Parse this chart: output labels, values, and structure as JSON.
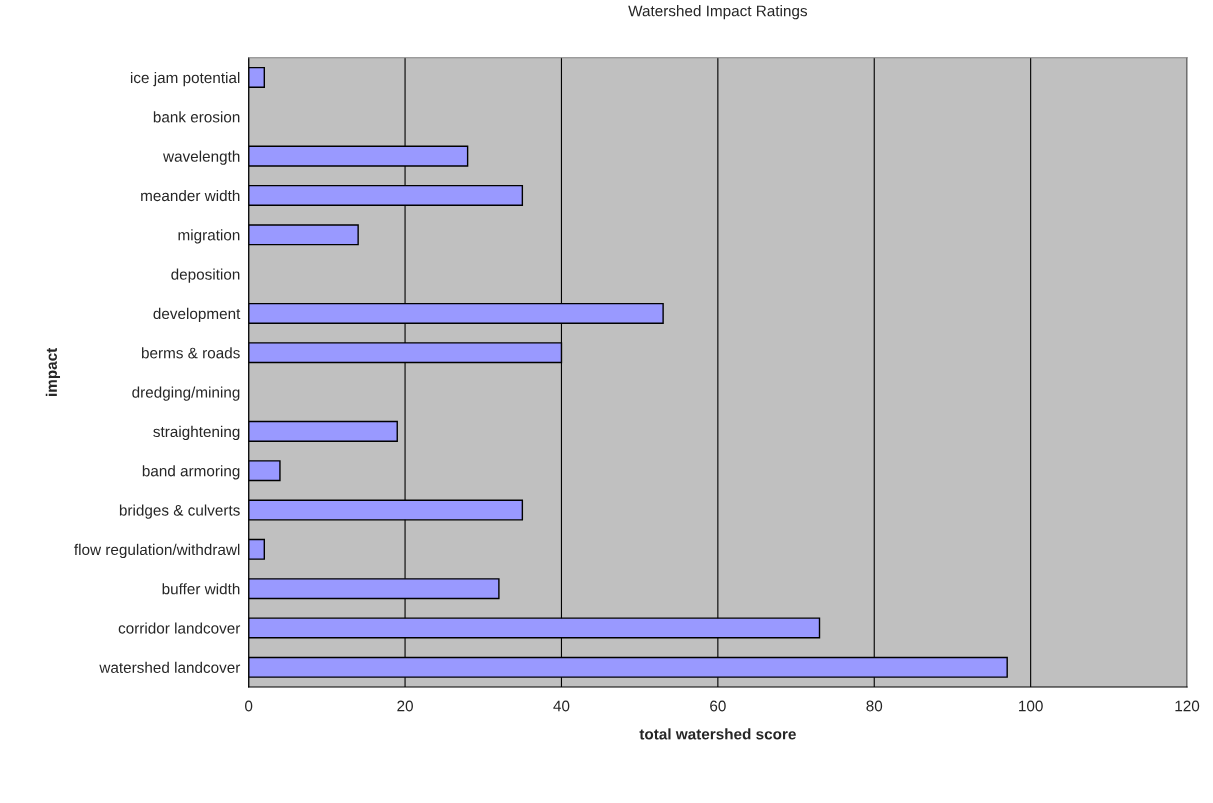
{
  "chart_data": {
    "type": "bar",
    "orientation": "horizontal",
    "title": "Watershed Impact Ratings",
    "xlabel": "total watershed score",
    "ylabel": "impact",
    "categories": [
      "ice jam potential",
      "bank erosion",
      "wavelength",
      "meander width",
      "migration",
      "deposition",
      "development",
      "berms & roads",
      "dredging/mining",
      "straightening",
      "band armoring",
      "bridges & culverts",
      "flow regulation/withdrawl",
      "buffer width",
      "corridor landcover",
      "watershed landcover"
    ],
    "values": [
      2,
      0,
      28,
      35,
      14,
      0,
      53,
      40,
      0,
      19,
      4,
      35,
      2,
      32,
      73,
      97
    ],
    "color": "#9999ff",
    "xlim": [
      0,
      120
    ],
    "xticks": [
      0,
      20,
      40,
      60,
      80,
      100,
      120
    ],
    "grid": "x"
  }
}
